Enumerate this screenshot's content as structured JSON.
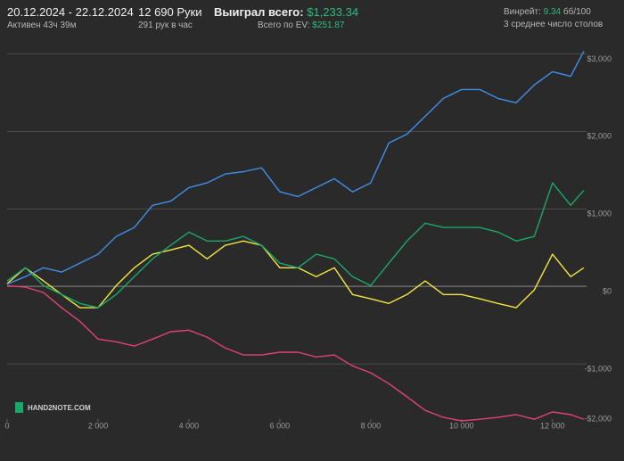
{
  "header": {
    "dates": "20.12.2024 - 22.12.2024",
    "active": "Активен 43ч 39м",
    "hands": "12 690 Руки",
    "hands_per_hour": "291 рук в час",
    "won_label": "Выиграл всего:",
    "won_value": "$1,233.34",
    "ev_label": "Всего по EV:",
    "ev_value": "$251.87",
    "winrate_label": "Винрейт:",
    "winrate_value": "9.34",
    "winrate_unit": "бб/100",
    "tables": "3 среднее число столов",
    "logo": "HAND2NOTE.COM"
  },
  "chart_data": {
    "type": "line",
    "x": [
      0,
      400,
      800,
      1200,
      1600,
      2000,
      2400,
      2800,
      3200,
      3600,
      4000,
      4400,
      4800,
      5200,
      5600,
      6000,
      6400,
      6800,
      7200,
      7600,
      8000,
      8400,
      8800,
      9200,
      9600,
      10000,
      10400,
      10800,
      11200,
      11600,
      12000,
      12400,
      12690
    ],
    "series": [
      {
        "color": "#3f8fe8",
        "values": [
          30,
          125,
          240,
          185,
          300,
          415,
          645,
          760,
          1045,
          1100,
          1275,
          1335,
          1450,
          1480,
          1530,
          1220,
          1160,
          1275,
          1390,
          1220,
          1335,
          1850,
          1965,
          2195,
          2425,
          2540,
          2540,
          2425,
          2370,
          2600,
          2770,
          2710,
          3035
        ]
      },
      {
        "color": "#1aa86a",
        "values": [
          70,
          240,
          10,
          -105,
          -220,
          -275,
          -105,
          125,
          355,
          530,
          700,
          585,
          585,
          645,
          530,
          300,
          240,
          415,
          355,
          125,
          10,
          300,
          585,
          815,
          760,
          760,
          760,
          700,
          585,
          645,
          1335,
          1045,
          1240
        ]
      },
      {
        "color": "#f2e640",
        "values": [
          35,
          240,
          70,
          -105,
          -275,
          -275,
          10,
          240,
          415,
          470,
          530,
          355,
          530,
          585,
          530,
          240,
          240,
          125,
          240,
          -105,
          -160,
          -220,
          -105,
          70,
          -105,
          -105,
          -160,
          -220,
          -275,
          -45,
          415,
          125,
          240
        ]
      },
      {
        "color": "#e0407a",
        "values": [
          10,
          -10,
          -80,
          -275,
          -450,
          -680,
          -715,
          -770,
          -680,
          -585,
          -565,
          -655,
          -795,
          -885,
          -885,
          -850,
          -850,
          -910,
          -885,
          -1025,
          -1115,
          -1255,
          -1425,
          -1600,
          -1690,
          -1735,
          -1715,
          -1690,
          -1655,
          -1715,
          -1620,
          -1655,
          -1715
        ]
      }
    ],
    "xlim": [
      0,
      12750
    ],
    "ylim": [
      -2000,
      3120
    ],
    "xticks": [
      0,
      {
        "value": 2000,
        "label": "2 000"
      },
      {
        "value": 4000,
        "label": "4 000"
      },
      {
        "value": 6000,
        "label": "6 000"
      },
      {
        "value": 8000,
        "label": "8 000"
      },
      {
        "value": 10000,
        "label": "10 000"
      },
      {
        "value": 12000,
        "label": "12 000"
      }
    ],
    "yticks": [
      {
        "value": 3000,
        "label": "$3,000"
      },
      {
        "value": 2000,
        "label": "$2,000"
      },
      {
        "value": 1000,
        "label": "$1,000"
      },
      {
        "value": 0,
        "label": "$0"
      },
      {
        "value": -1000,
        "label": "-$1,000"
      },
      {
        "value": -2000,
        "label": "-$2,000"
      }
    ],
    "grid": true
  }
}
